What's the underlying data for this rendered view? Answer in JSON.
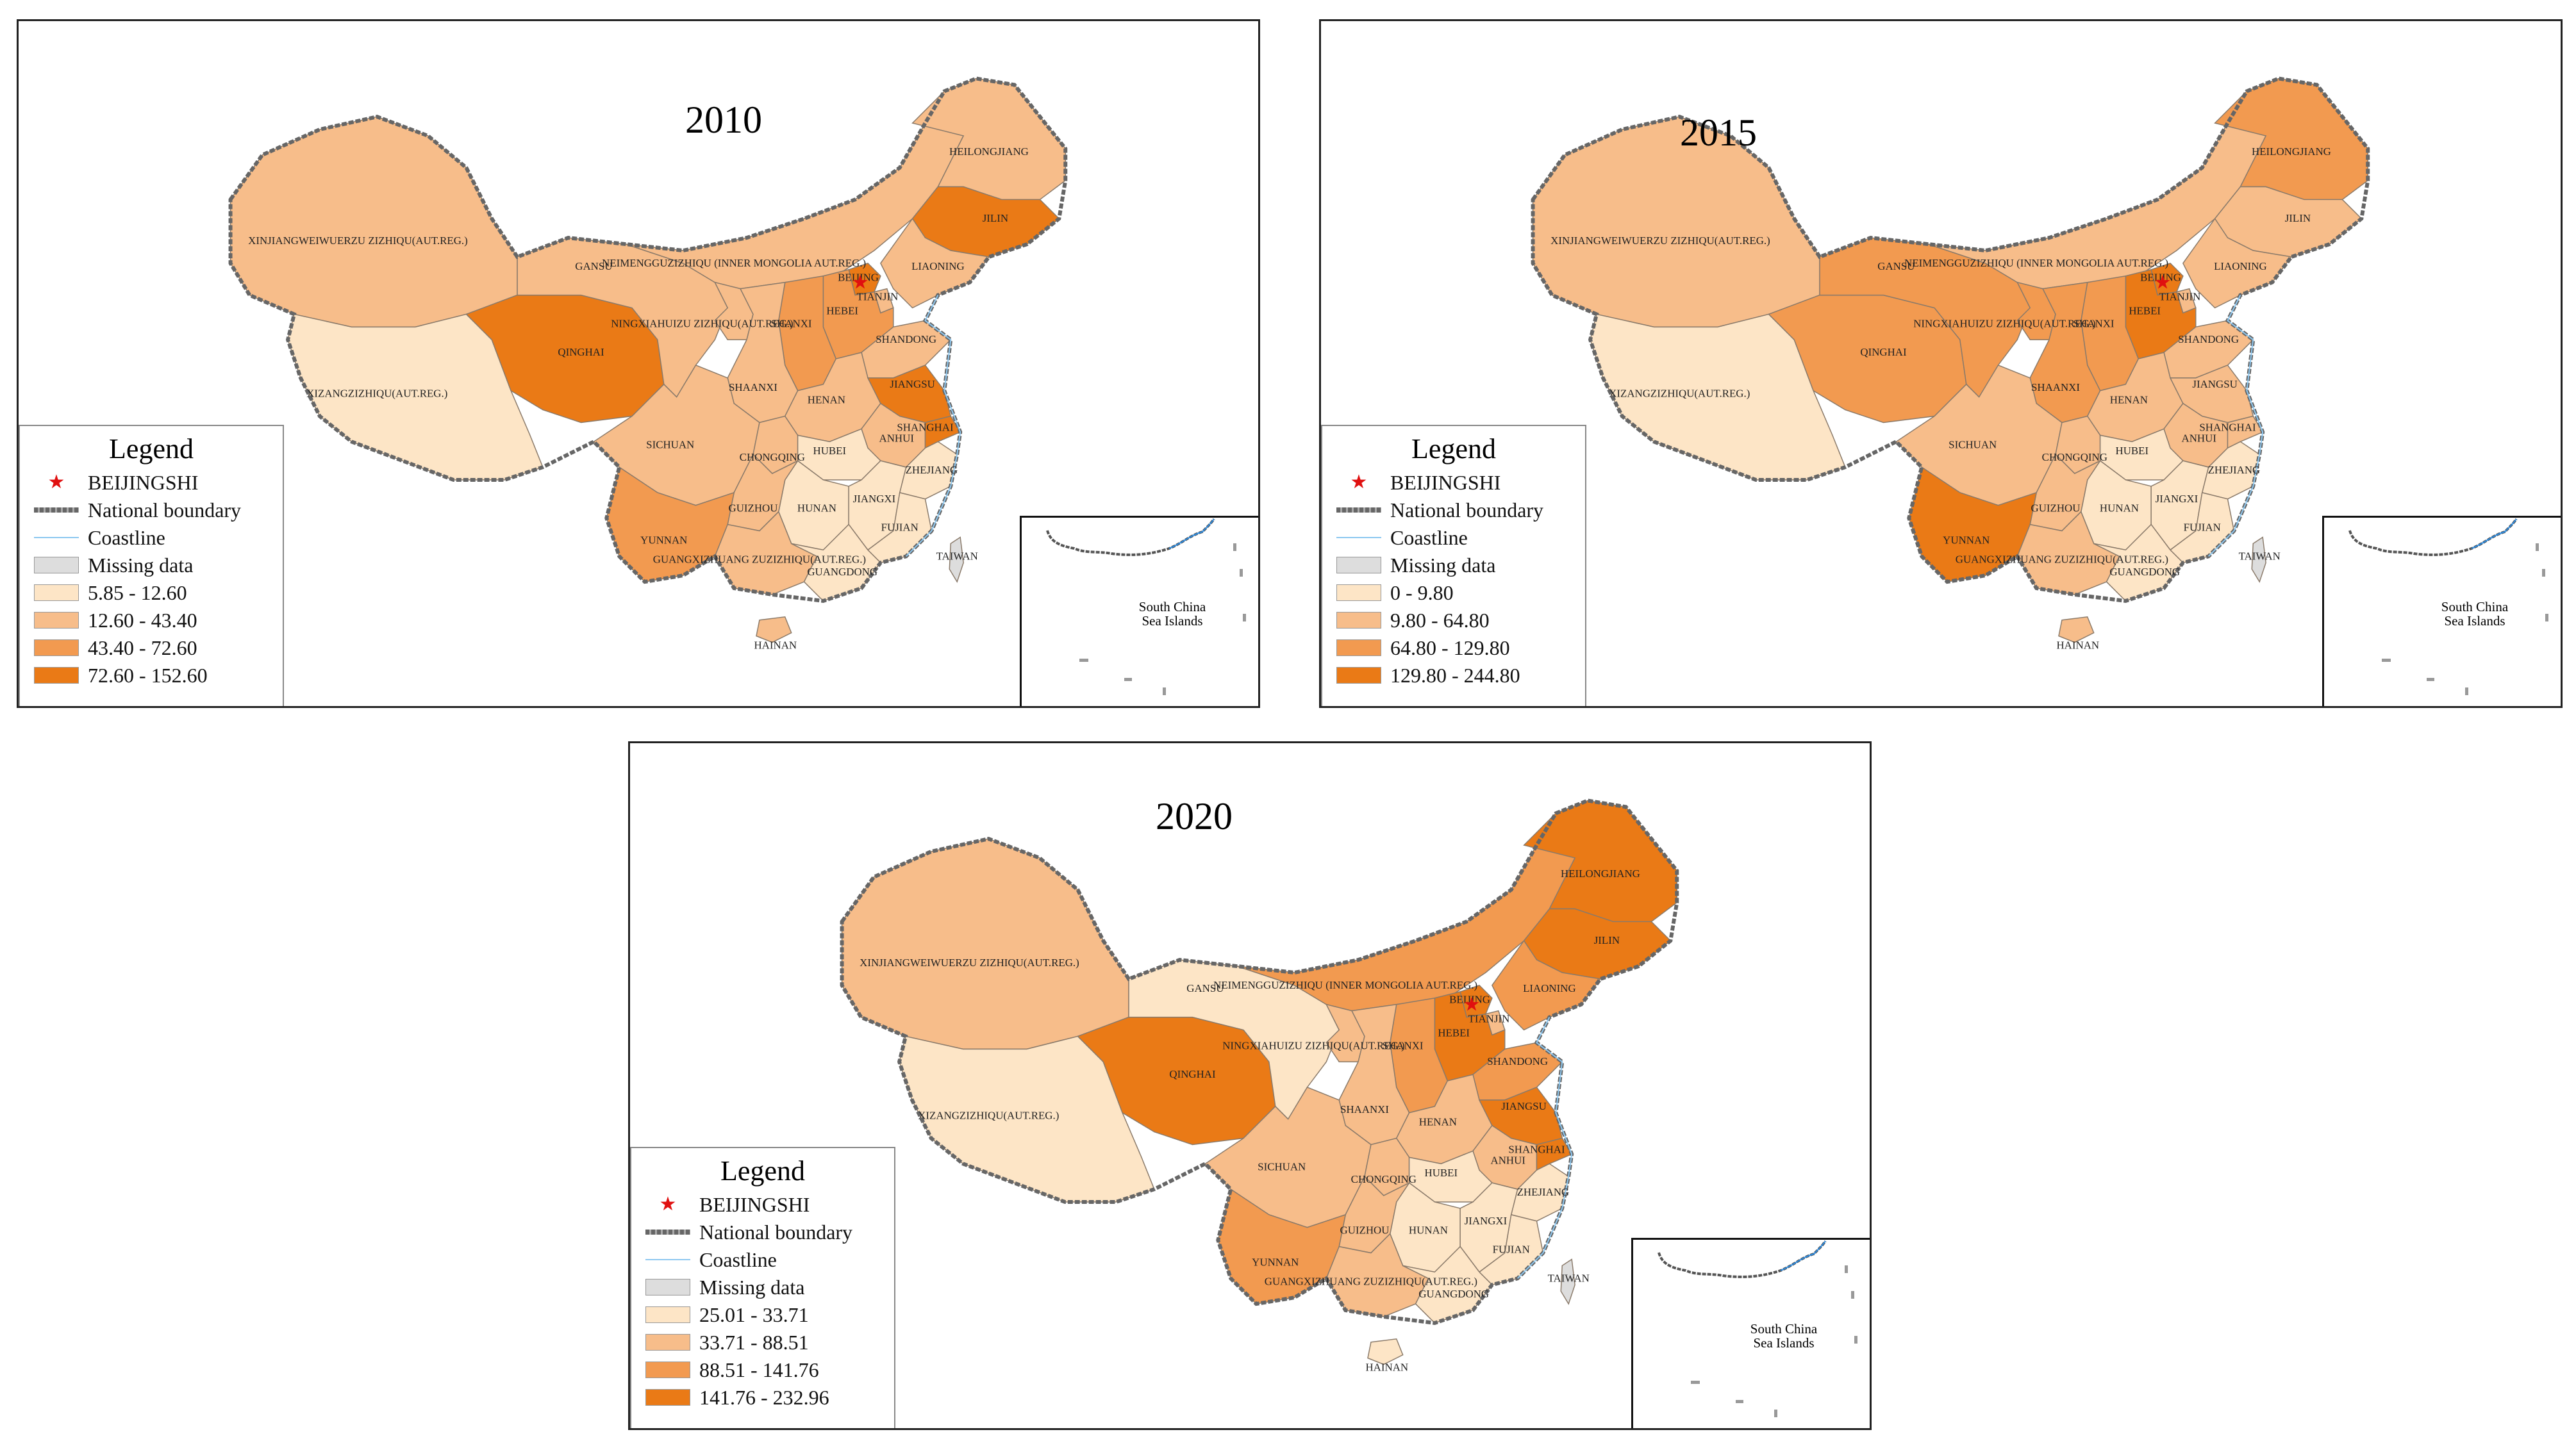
{
  "colors": {
    "c1": "#fde5c6",
    "c2": "#f7bd8a",
    "c3": "#f29a50",
    "c4": "#ea7a16",
    "missing": "#dddddd",
    "outline": "#555555",
    "star": "#e01010"
  },
  "province_labels": {
    "xinjiang": "XINJIANGWEIWUERZU ZIZHIQU(AUT.REG.)",
    "xizang": "XIZANGZIZHIQU(AUT.REG.)",
    "qinghai": "QINGHAI",
    "gansu": "GANSU",
    "neimenggu_2010": "NEIMENGGUZIZHIQU (INNER MONGOLIA AUT.REG.)",
    "neimenggu_2015": "NEIMENGGUZIZHIQU (INNER MONGOLIA AUT.REG.)",
    "neimenggu_2020": "NEIMENGGUZIZHIQU (INNER MONGOLIA AUT.REG.)",
    "heilongjiang": "HEILONGJIANG",
    "jilin": "JILIN",
    "liaoning": "LIAONING",
    "beijing": "BEIJING",
    "tianjin": "TIANJIN",
    "hebei": "HEBEI",
    "shanxi": "SHANXI",
    "shandong": "SHANDONG",
    "ningxia": "NINGXIAHUIZU ZIZHIQU(AUT.REG.)",
    "shaanxi": "SHAANXI",
    "henan": "HENAN",
    "jiangsu": "JIANGSU",
    "anhui": "ANHUI",
    "shanghai": "SHANGHAI",
    "sichuan": "SICHUAN",
    "chongqing": "CHONGQING",
    "hubei": "HUBEI",
    "zhejiang": "ZHEJIANG",
    "hunan": "HUNAN",
    "jiangxi": "JIANGXI",
    "guizhou": "GUIZHOU",
    "fujian": "FUJIAN",
    "yunnan": "YUNNAN",
    "guangxi": "GUANGXIZHUANG ZUZIZHIQU(AUT.REG.)",
    "guangdong": "GUANGDONG",
    "taiwan": "TAIWAN",
    "hainan": "HAINAN"
  },
  "maps": [
    {
      "year": "2010",
      "legend": {
        "title": "Legend",
        "capital": "BEIJINGSHI",
        "boundary": "National boundary",
        "coastline": "Coastline",
        "missing": "Missing data",
        "classes": [
          "5.85 - 12.60",
          "12.60 - 43.40",
          "43.40 - 72.60",
          "72.60 - 152.60"
        ]
      },
      "inset_label": "South China Sea Islands",
      "classes_by_province": {
        "xinjiang": 2,
        "xizang": 1,
        "qinghai": 4,
        "gansu": 2,
        "neimenggu": 2,
        "heilongjiang": 2,
        "jilin": 4,
        "liaoning": 2,
        "beijing": 4,
        "tianjin": 2,
        "hebei": 3,
        "shanxi": 3,
        "shandong": 2,
        "ningxia": 2,
        "shaanxi": 2,
        "henan": 2,
        "jiangsu": 4,
        "anhui": 2,
        "shanghai": 4,
        "sichuan": 2,
        "chongqing": 2,
        "hubei": 1,
        "zhejiang": 1,
        "hunan": 1,
        "jiangxi": 1,
        "guizhou": 2,
        "fujian": 1,
        "yunnan": 3,
        "guangxi": 2,
        "guangdong": 1,
        "hainan": 2,
        "taiwan": 0
      }
    },
    {
      "year": "2015",
      "legend": {
        "title": "Legend",
        "capital": "BEIJINGSHI",
        "boundary": "National boundary",
        "coastline": "Coastline",
        "missing": "Missing data",
        "classes": [
          "0 - 9.80",
          "9.80 - 64.80",
          "64.80 - 129.80",
          "129.80 - 244.80"
        ]
      },
      "inset_label": "South China Sea Islands",
      "classes_by_province": {
        "xinjiang": 2,
        "xizang": 1,
        "qinghai": 3,
        "gansu": 3,
        "neimenggu": 2,
        "heilongjiang": 3,
        "jilin": 2,
        "liaoning": 2,
        "beijing": 4,
        "tianjin": 2,
        "hebei": 4,
        "shanxi": 3,
        "shandong": 2,
        "ningxia": 3,
        "shaanxi": 3,
        "henan": 2,
        "jiangsu": 2,
        "anhui": 2,
        "shanghai": 2,
        "sichuan": 2,
        "chongqing": 2,
        "hubei": 1,
        "zhejiang": 1,
        "hunan": 1,
        "jiangxi": 1,
        "guizhou": 2,
        "fujian": 1,
        "yunnan": 4,
        "guangxi": 2,
        "guangdong": 1,
        "hainan": 2,
        "taiwan": 0
      }
    },
    {
      "year": "2020",
      "legend": {
        "title": "Legend",
        "capital": "BEIJINGSHI",
        "boundary": "National boundary",
        "coastline": "Coastline",
        "missing": "Missing data",
        "classes": [
          "25.01 - 33.71",
          "33.71 - 88.51",
          "88.51 - 141.76",
          "141.76 - 232.96"
        ]
      },
      "inset_label": "South China Sea Islands",
      "classes_by_province": {
        "xinjiang": 2,
        "xizang": 1,
        "qinghai": 4,
        "gansu": 1,
        "neimenggu": 3,
        "heilongjiang": 4,
        "jilin": 4,
        "liaoning": 3,
        "beijing": 4,
        "tianjin": 2,
        "hebei": 4,
        "shanxi": 3,
        "shandong": 3,
        "ningxia": 2,
        "shaanxi": 2,
        "henan": 2,
        "jiangsu": 4,
        "anhui": 2,
        "shanghai": 4,
        "sichuan": 2,
        "chongqing": 2,
        "hubei": 1,
        "zhejiang": 1,
        "hunan": 1,
        "jiangxi": 1,
        "guizhou": 2,
        "fujian": 1,
        "yunnan": 3,
        "guangxi": 2,
        "guangdong": 1,
        "hainan": 1,
        "taiwan": 0
      }
    }
  ]
}
